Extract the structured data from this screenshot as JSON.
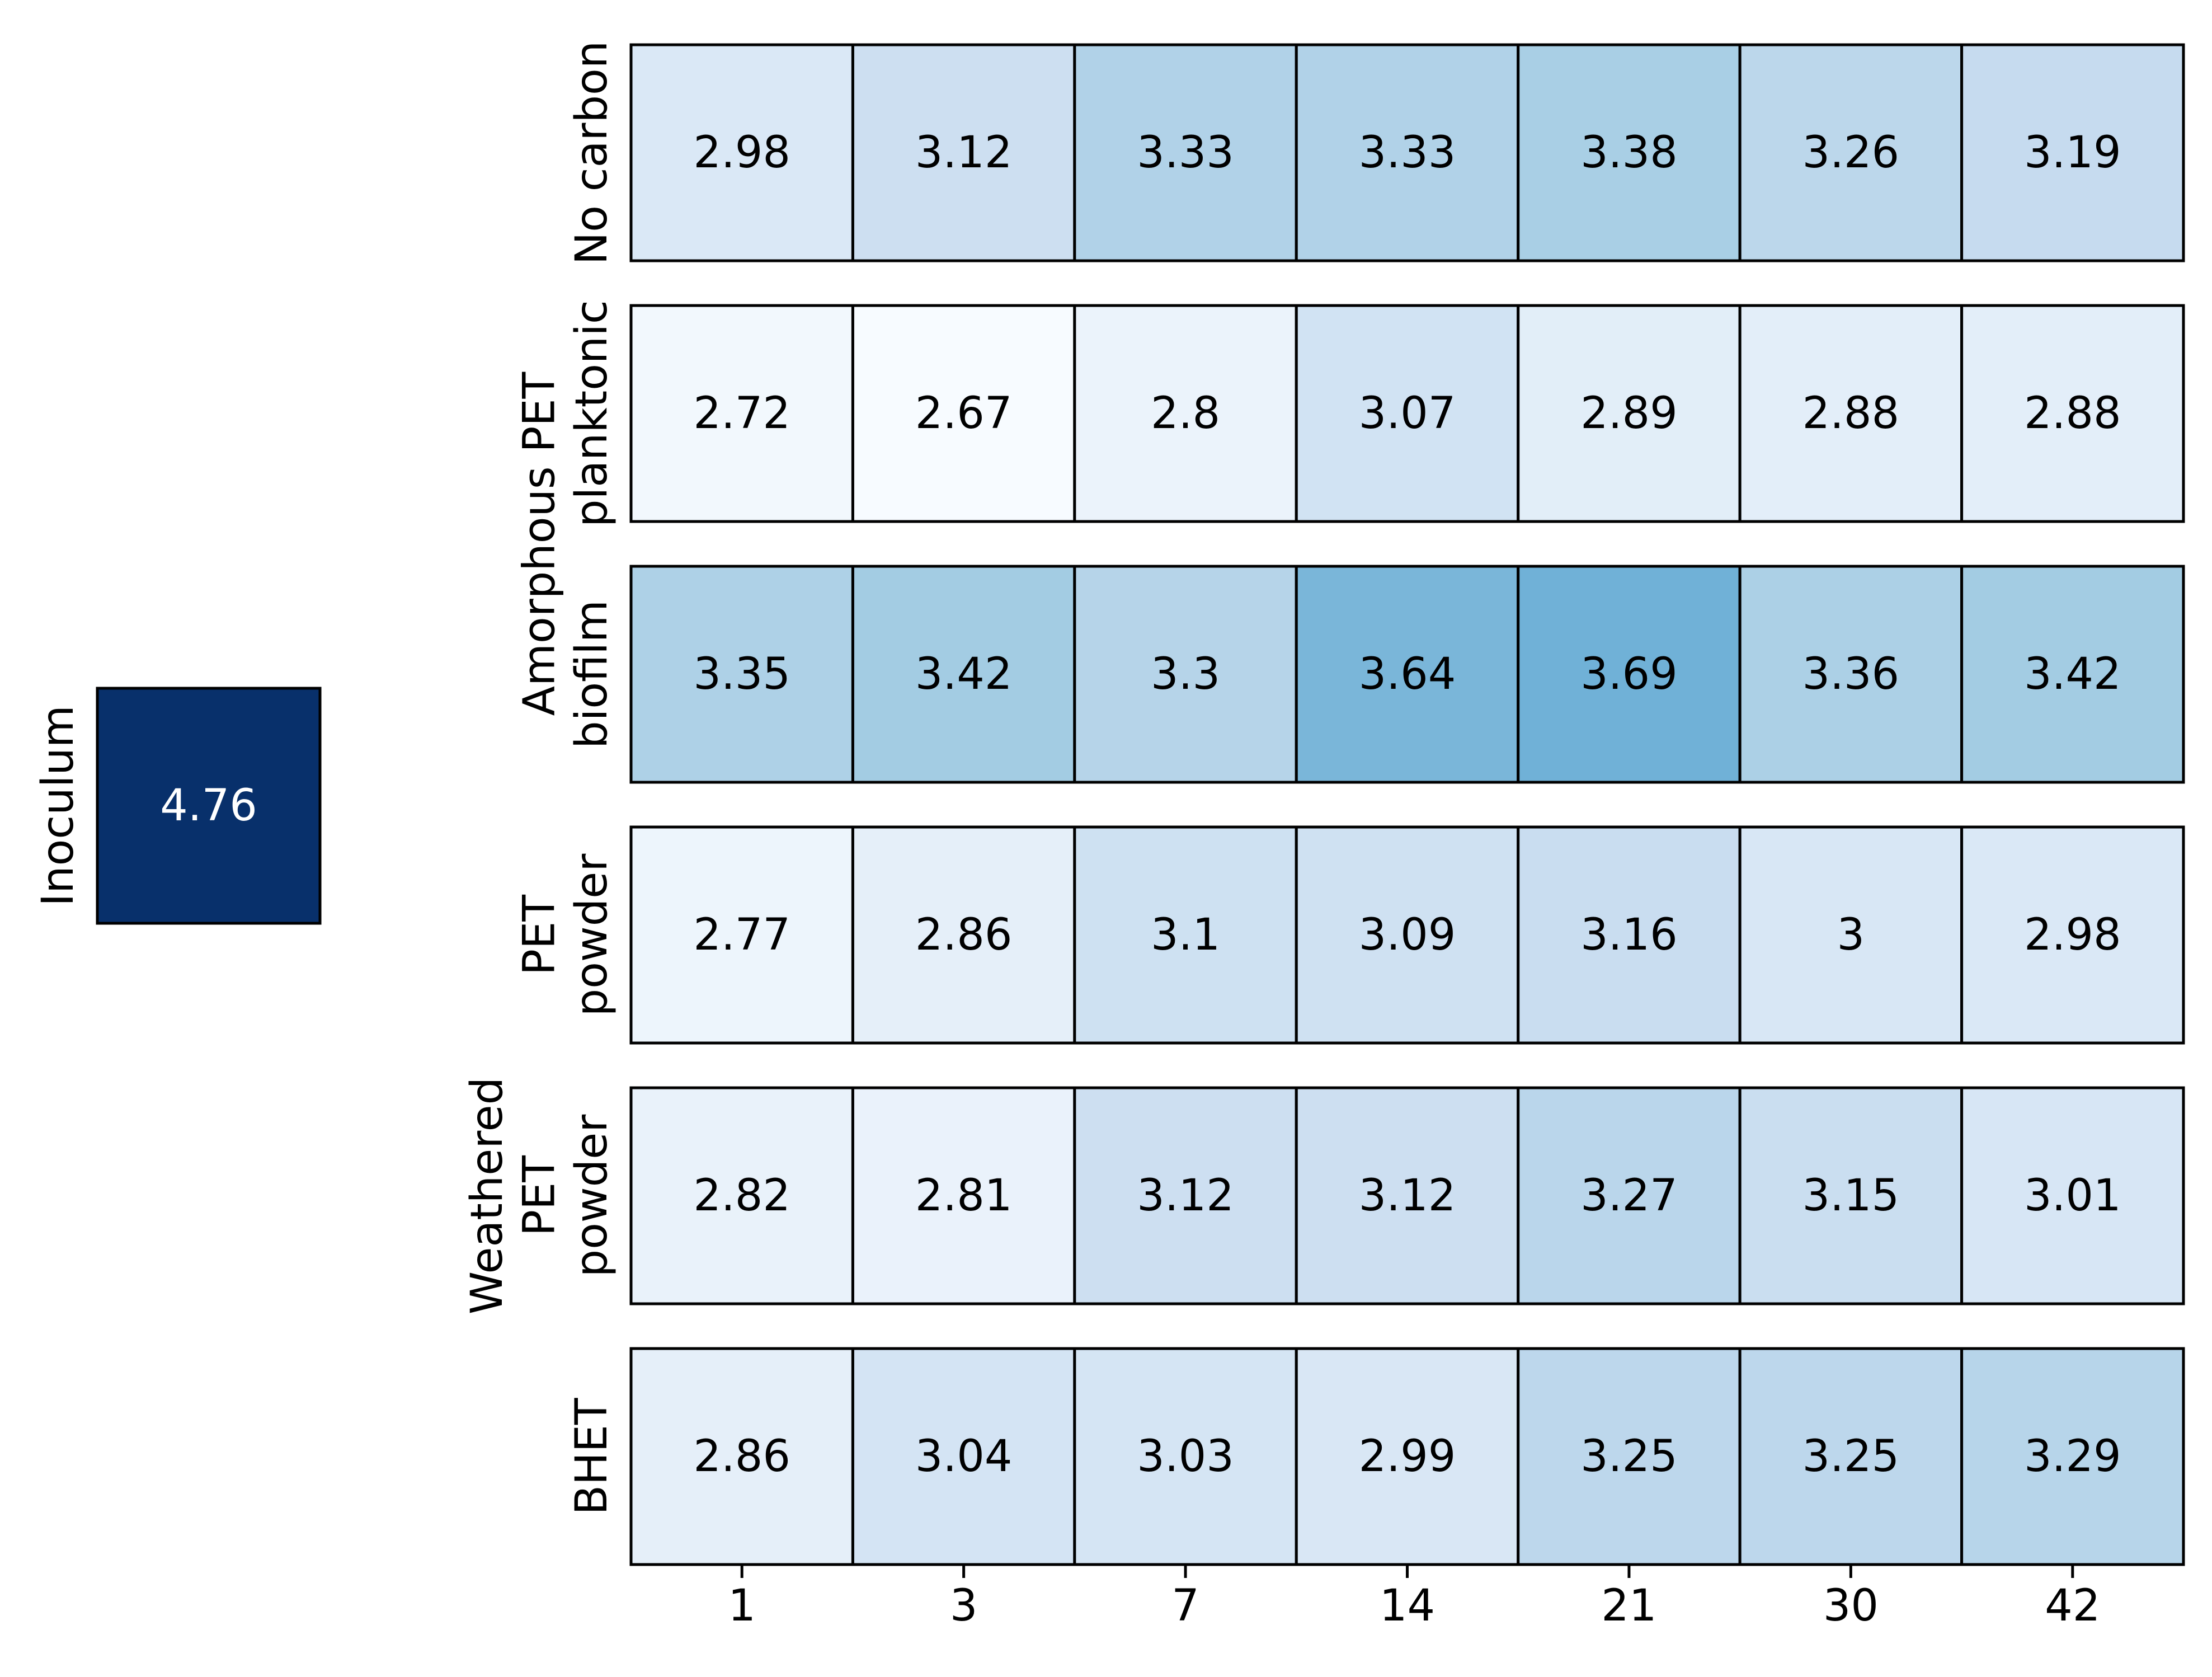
{
  "chart_data": {
    "type": "heatmap",
    "colormap": "Blues",
    "vmin": 2.67,
    "vmax": 4.76,
    "x_categories": [
      "1",
      "3",
      "7",
      "14",
      "21",
      "30",
      "42"
    ],
    "inoculum": {
      "label": "Inoculum",
      "value": 4.76
    },
    "rows": [
      {
        "label_lines": [
          "No carbon"
        ],
        "values": [
          2.98,
          3.12,
          3.33,
          3.33,
          3.38,
          3.26,
          3.19
        ]
      },
      {
        "label_lines": [
          "planktonic"
        ],
        "values": [
          2.72,
          2.67,
          2.8,
          3.07,
          2.89,
          2.88,
          2.88
        ]
      },
      {
        "label_lines": [
          "biofilm"
        ],
        "values": [
          3.35,
          3.42,
          3.3,
          3.64,
          3.69,
          3.36,
          3.42
        ]
      },
      {
        "label_lines": [
          "PET",
          "powder"
        ],
        "values": [
          2.77,
          2.86,
          3.1,
          3.09,
          3.16,
          3.0,
          2.98
        ]
      },
      {
        "label_lines": [
          "Weathered",
          "PET",
          "powder"
        ],
        "values": [
          2.82,
          2.81,
          3.12,
          3.12,
          3.27,
          3.15,
          3.01
        ]
      },
      {
        "label_lines": [
          "BHET"
        ],
        "values": [
          2.86,
          3.04,
          3.03,
          2.99,
          3.25,
          3.25,
          3.29
        ]
      }
    ],
    "group_labels": [
      {
        "label": "Amorphous PET",
        "rows": [
          1,
          2
        ]
      }
    ]
  }
}
